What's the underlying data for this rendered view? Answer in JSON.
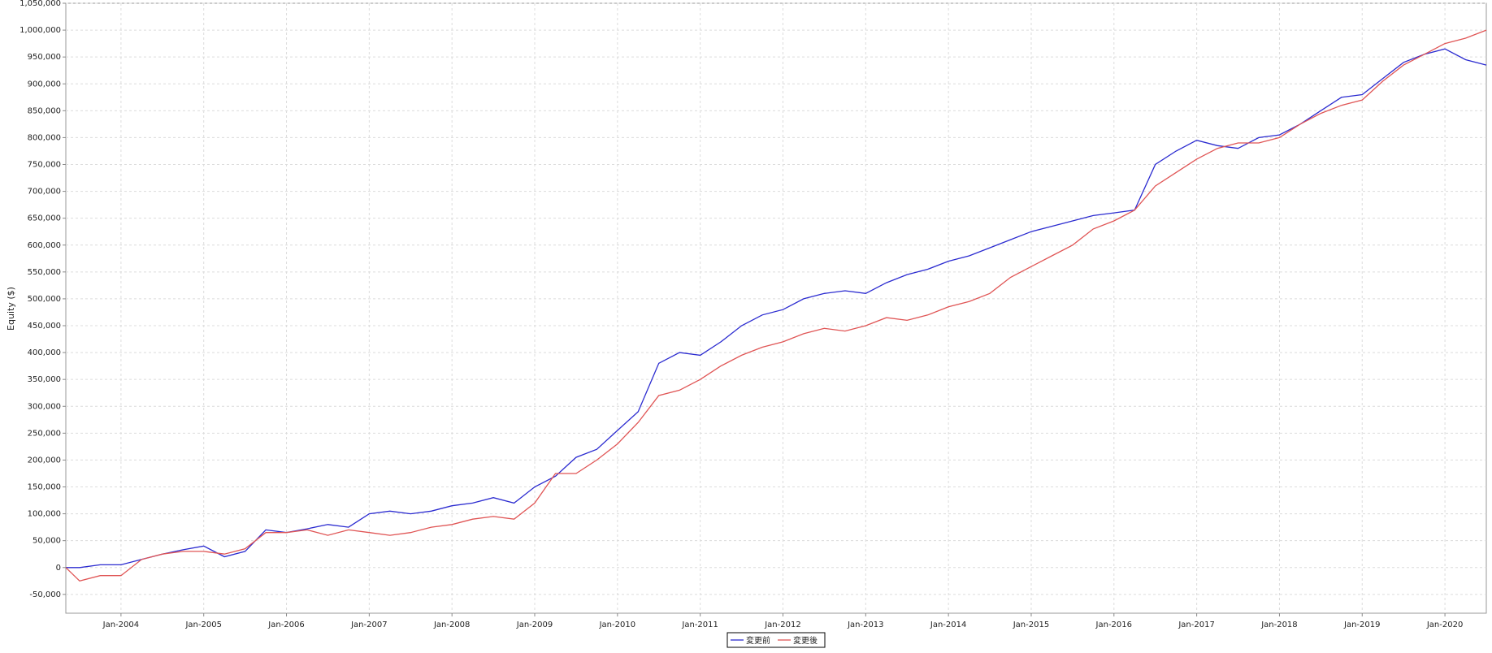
{
  "chart_data": {
    "type": "line",
    "y_label": "Equity ($)",
    "x": [
      "2003-05",
      "2003-07",
      "2003-10",
      "2004-01",
      "2004-04",
      "2004-07",
      "2004-10",
      "2005-01",
      "2005-04",
      "2005-07",
      "2005-10",
      "2006-01",
      "2006-04",
      "2006-07",
      "2006-10",
      "2007-01",
      "2007-04",
      "2007-07",
      "2007-10",
      "2008-01",
      "2008-04",
      "2008-07",
      "2008-10",
      "2009-01",
      "2009-04",
      "2009-07",
      "2009-10",
      "2010-01",
      "2010-04",
      "2010-07",
      "2010-10",
      "2011-01",
      "2011-04",
      "2011-07",
      "2011-10",
      "2012-01",
      "2012-04",
      "2012-07",
      "2012-10",
      "2013-01",
      "2013-04",
      "2013-07",
      "2013-10",
      "2014-01",
      "2014-04",
      "2014-07",
      "2014-10",
      "2015-01",
      "2015-04",
      "2015-07",
      "2015-10",
      "2016-01",
      "2016-04",
      "2016-07",
      "2016-10",
      "2017-01",
      "2017-04",
      "2017-07",
      "2017-10",
      "2018-01",
      "2018-04",
      "2018-07",
      "2018-10",
      "2019-01",
      "2019-04",
      "2019-07",
      "2019-10",
      "2020-01",
      "2020-04",
      "2020-07"
    ],
    "series": [
      {
        "name": "変更前",
        "color": "#2b2bd0",
        "values": [
          0,
          0,
          5000,
          5000,
          15000,
          25000,
          33000,
          40000,
          20000,
          30000,
          70000,
          65000,
          72000,
          80000,
          75000,
          100000,
          105000,
          100000,
          105000,
          115000,
          120000,
          130000,
          120000,
          150000,
          170000,
          205000,
          220000,
          255000,
          290000,
          380000,
          400000,
          395000,
          420000,
          450000,
          470000,
          480000,
          500000,
          510000,
          515000,
          510000,
          530000,
          545000,
          555000,
          570000,
          580000,
          595000,
          610000,
          625000,
          635000,
          645000,
          655000,
          660000,
          665000,
          750000,
          775000,
          795000,
          785000,
          780000,
          800000,
          805000,
          825000,
          850000,
          875000,
          880000,
          910000,
          940000,
          955000,
          965000,
          945000,
          935000
        ]
      },
      {
        "name": "変更後",
        "color": "#e05555",
        "values": [
          0,
          -25000,
          -15000,
          -15000,
          15000,
          25000,
          30000,
          30000,
          25000,
          35000,
          65000,
          65000,
          70000,
          60000,
          70000,
          65000,
          60000,
          65000,
          75000,
          80000,
          90000,
          95000,
          90000,
          120000,
          175000,
          175000,
          200000,
          230000,
          270000,
          320000,
          330000,
          350000,
          375000,
          395000,
          410000,
          420000,
          435000,
          445000,
          440000,
          450000,
          465000,
          460000,
          470000,
          485000,
          495000,
          510000,
          540000,
          560000,
          580000,
          600000,
          630000,
          645000,
          665000,
          710000,
          735000,
          760000,
          780000,
          790000,
          790000,
          800000,
          825000,
          845000,
          860000,
          870000,
          905000,
          935000,
          955000,
          975000,
          985000,
          1000000
        ]
      }
    ],
    "xlim": [
      "2003-05",
      "2020-07"
    ],
    "xticks": [
      {
        "value": "2004-01",
        "label": "Jan-2004"
      },
      {
        "value": "2005-01",
        "label": "Jan-2005"
      },
      {
        "value": "2006-01",
        "label": "Jan-2006"
      },
      {
        "value": "2007-01",
        "label": "Jan-2007"
      },
      {
        "value": "2008-01",
        "label": "Jan-2008"
      },
      {
        "value": "2009-01",
        "label": "Jan-2009"
      },
      {
        "value": "2010-01",
        "label": "Jan-2010"
      },
      {
        "value": "2011-01",
        "label": "Jan-2011"
      },
      {
        "value": "2012-01",
        "label": "Jan-2012"
      },
      {
        "value": "2013-01",
        "label": "Jan-2013"
      },
      {
        "value": "2014-01",
        "label": "Jan-2014"
      },
      {
        "value": "2015-01",
        "label": "Jan-2015"
      },
      {
        "value": "2016-01",
        "label": "Jan-2016"
      },
      {
        "value": "2017-01",
        "label": "Jan-2017"
      },
      {
        "value": "2018-01",
        "label": "Jan-2018"
      },
      {
        "value": "2019-01",
        "label": "Jan-2019"
      },
      {
        "value": "2020-01",
        "label": "Jan-2020"
      }
    ],
    "ylim": [
      -85000,
      1050000
    ],
    "yticks": [
      {
        "value": -50000,
        "label": "-50,000"
      },
      0,
      {
        "value": 50000,
        "label": "50,000"
      },
      {
        "value": 100000,
        "label": "100,000"
      },
      {
        "value": 150000,
        "label": "150,000"
      },
      {
        "value": 200000,
        "label": "200,000"
      },
      {
        "value": 250000,
        "label": "250,000"
      },
      {
        "value": 300000,
        "label": "300,000"
      },
      {
        "value": 350000,
        "label": "350,000"
      },
      {
        "value": 400000,
        "label": "400,000"
      },
      {
        "value": 450000,
        "label": "450,000"
      },
      {
        "value": 500000,
        "label": "500,000"
      },
      {
        "value": 550000,
        "label": "550,000"
      },
      {
        "value": 600000,
        "label": "600,000"
      },
      {
        "value": 650000,
        "label": "650,000"
      },
      {
        "value": 700000,
        "label": "700,000"
      },
      {
        "value": 750000,
        "label": "750,000"
      },
      {
        "value": 800000,
        "label": "800,000"
      },
      {
        "value": 850000,
        "label": "850,000"
      },
      {
        "value": 900000,
        "label": "900,000"
      },
      {
        "value": 950000,
        "label": "950,000"
      },
      {
        "value": 1000000,
        "label": "1,000,000"
      },
      {
        "value": 1050000,
        "label": "1,050,000"
      }
    ],
    "grid": true,
    "legend": "bottom"
  }
}
